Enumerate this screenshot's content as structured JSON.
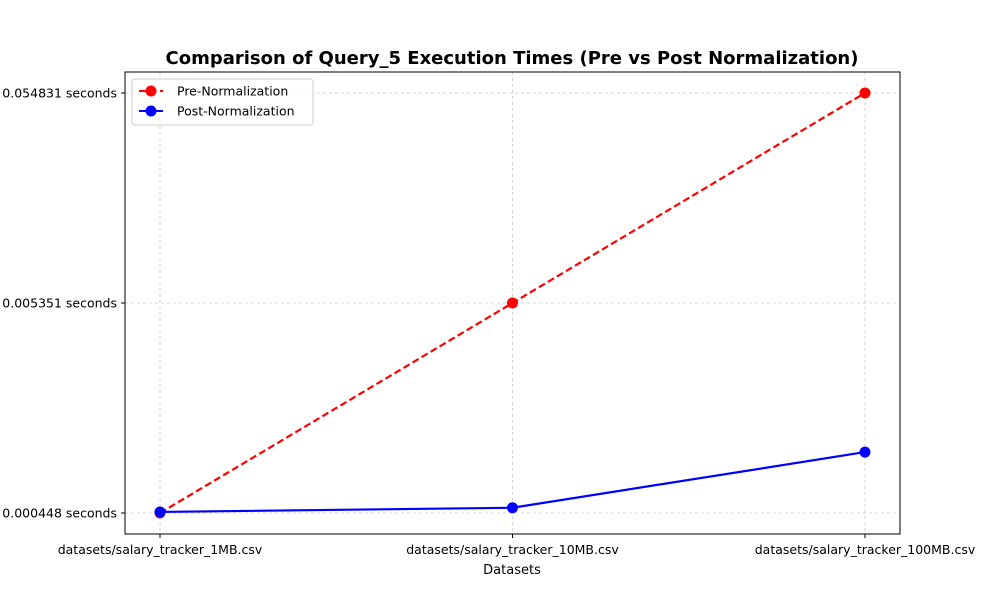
{
  "chart_data": {
    "type": "line",
    "title": "Comparison of Query_5 Execution Times (Pre vs Post Normalization)",
    "xlabel": "Datasets",
    "ylabel": "",
    "categories": [
      "datasets/salary_tracker_1MB.csv",
      "datasets/salary_tracker_10MB.csv",
      "datasets/salary_tracker_100MB.csv"
    ],
    "y_tick_labels": [
      "0.000448 seconds",
      "0.005351 seconds",
      "0.054831 seconds"
    ],
    "y_tick_values": [
      0,
      1,
      2
    ],
    "series": [
      {
        "name": "Pre-Normalization",
        "color": "#ff0000",
        "line_style": "dashed",
        "marker": "circle",
        "values": [
          0,
          1,
          2
        ]
      },
      {
        "name": "Post-Normalization",
        "color": "#0000ff",
        "line_style": "solid",
        "marker": "circle",
        "values": [
          0.005,
          0.025,
          0.29
        ]
      }
    ],
    "ylim": [
      -0.1,
      2.1
    ],
    "grid": true,
    "legend_position": "top-left"
  }
}
